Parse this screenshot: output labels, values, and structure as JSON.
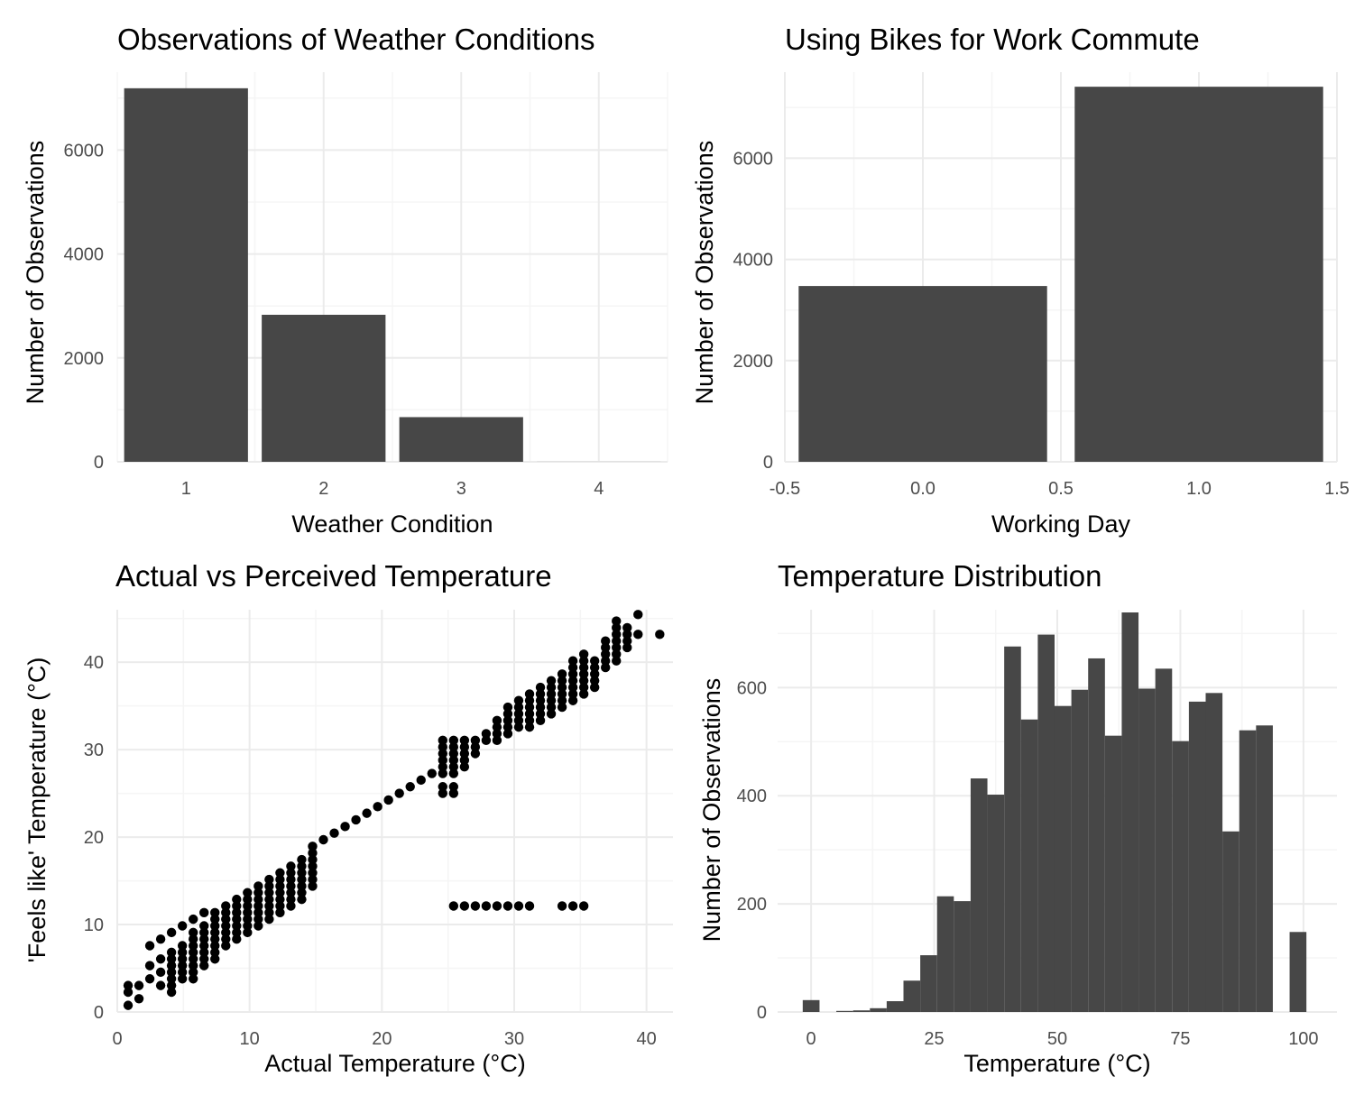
{
  "colors": {
    "bar": "#474747",
    "point": "#000000",
    "grid_major": "#ebebeb",
    "grid_minor": "#f5f5f5",
    "tick_text": "#4d4d4d"
  },
  "chart_data": [
    {
      "type": "bar",
      "title": "Observations of Weather Conditions",
      "xlabel": "Weather Condition",
      "ylabel": "Number of Observations",
      "categories": [
        1,
        2,
        3,
        4
      ],
      "values": [
        7190,
        2830,
        860,
        1
      ],
      "xlim": [
        0.5,
        4.5
      ],
      "ylim": [
        0,
        7500
      ],
      "x_ticks": [
        "1",
        "2",
        "3",
        "4"
      ],
      "y_ticks": [
        "0",
        "2000",
        "4000",
        "6000"
      ],
      "grid": true
    },
    {
      "type": "bar",
      "title": "Using Bikes for Work Commute",
      "xlabel": "Working Day",
      "ylabel": "Number of Observations",
      "categories": [
        0,
        1
      ],
      "values": [
        3474,
        7412
      ],
      "xlim": [
        -0.5,
        1.5
      ],
      "ylim": [
        0,
        7700
      ],
      "x_ticks": [
        "-0.5",
        "0.0",
        "0.5",
        "1.0",
        "1.5"
      ],
      "y_ticks": [
        "0",
        "2000",
        "4000",
        "6000"
      ],
      "grid": true
    },
    {
      "type": "scatter",
      "title": "Actual vs Perceived Temperature",
      "xlabel": "Actual Temperature (°C)",
      "ylabel": "'Feels like' Temperature (°C)",
      "xlim": [
        0,
        42
      ],
      "ylim": [
        0,
        46
      ],
      "x_ticks": [
        "0",
        "10",
        "20",
        "30",
        "40"
      ],
      "y_ticks": [
        "0",
        "10",
        "20",
        "30",
        "40"
      ],
      "grid": true,
      "points": [
        [
          0.82,
          0.76
        ],
        [
          0.82,
          2.27
        ],
        [
          0.82,
          3.03
        ],
        [
          1.64,
          1.52
        ],
        [
          1.64,
          3.03
        ],
        [
          2.46,
          3.79
        ],
        [
          2.46,
          5.3
        ],
        [
          2.46,
          7.58
        ],
        [
          3.28,
          3.03
        ],
        [
          3.28,
          4.55
        ],
        [
          3.28,
          6.06
        ],
        [
          3.28,
          8.33
        ],
        [
          4.1,
          2.27
        ],
        [
          4.1,
          3.03
        ],
        [
          4.1,
          3.79
        ],
        [
          4.1,
          4.55
        ],
        [
          4.1,
          5.3
        ],
        [
          4.1,
          6.06
        ],
        [
          4.1,
          6.82
        ],
        [
          4.1,
          9.09
        ],
        [
          4.92,
          3.79
        ],
        [
          4.92,
          4.55
        ],
        [
          4.92,
          5.3
        ],
        [
          4.92,
          6.06
        ],
        [
          4.92,
          6.82
        ],
        [
          4.92,
          7.58
        ],
        [
          4.92,
          9.85
        ],
        [
          5.74,
          3.79
        ],
        [
          5.74,
          4.55
        ],
        [
          5.74,
          5.3
        ],
        [
          5.74,
          6.06
        ],
        [
          5.74,
          6.82
        ],
        [
          5.74,
          7.58
        ],
        [
          5.74,
          8.33
        ],
        [
          5.74,
          9.09
        ],
        [
          5.74,
          10.61
        ],
        [
          6.56,
          5.3
        ],
        [
          6.56,
          6.06
        ],
        [
          6.56,
          6.82
        ],
        [
          6.56,
          7.58
        ],
        [
          6.56,
          8.33
        ],
        [
          6.56,
          9.09
        ],
        [
          6.56,
          9.85
        ],
        [
          6.56,
          11.36
        ],
        [
          7.38,
          6.06
        ],
        [
          7.38,
          6.82
        ],
        [
          7.38,
          7.58
        ],
        [
          7.38,
          8.33
        ],
        [
          7.38,
          9.09
        ],
        [
          7.38,
          9.85
        ],
        [
          7.38,
          10.61
        ],
        [
          7.38,
          11.36
        ],
        [
          8.2,
          7.58
        ],
        [
          8.2,
          8.33
        ],
        [
          8.2,
          9.09
        ],
        [
          8.2,
          9.85
        ],
        [
          8.2,
          10.61
        ],
        [
          8.2,
          11.36
        ],
        [
          8.2,
          12.12
        ],
        [
          9.02,
          8.33
        ],
        [
          9.02,
          9.09
        ],
        [
          9.02,
          9.85
        ],
        [
          9.02,
          10.61
        ],
        [
          9.02,
          11.36
        ],
        [
          9.02,
          12.12
        ],
        [
          9.02,
          12.88
        ],
        [
          9.84,
          9.09
        ],
        [
          9.84,
          9.85
        ],
        [
          9.84,
          10.61
        ],
        [
          9.84,
          11.36
        ],
        [
          9.84,
          12.12
        ],
        [
          9.84,
          12.88
        ],
        [
          9.84,
          13.64
        ],
        [
          10.66,
          9.85
        ],
        [
          10.66,
          10.61
        ],
        [
          10.66,
          11.36
        ],
        [
          10.66,
          12.12
        ],
        [
          10.66,
          12.88
        ],
        [
          10.66,
          13.64
        ],
        [
          10.66,
          14.39
        ],
        [
          11.48,
          10.61
        ],
        [
          11.48,
          11.36
        ],
        [
          11.48,
          12.12
        ],
        [
          11.48,
          12.88
        ],
        [
          11.48,
          13.64
        ],
        [
          11.48,
          14.39
        ],
        [
          11.48,
          15.15
        ],
        [
          12.3,
          11.36
        ],
        [
          12.3,
          12.12
        ],
        [
          12.3,
          12.88
        ],
        [
          12.3,
          13.64
        ],
        [
          12.3,
          14.39
        ],
        [
          12.3,
          15.15
        ],
        [
          12.3,
          15.91
        ],
        [
          13.12,
          12.12
        ],
        [
          13.12,
          12.88
        ],
        [
          13.12,
          13.64
        ],
        [
          13.12,
          14.39
        ],
        [
          13.12,
          15.15
        ],
        [
          13.12,
          15.91
        ],
        [
          13.12,
          16.67
        ],
        [
          13.94,
          12.88
        ],
        [
          13.94,
          13.64
        ],
        [
          13.94,
          14.39
        ],
        [
          13.94,
          15.15
        ],
        [
          13.94,
          15.91
        ],
        [
          13.94,
          16.67
        ],
        [
          13.94,
          17.42
        ],
        [
          14.76,
          14.39
        ],
        [
          14.76,
          15.15
        ],
        [
          14.76,
          15.91
        ],
        [
          14.76,
          16.67
        ],
        [
          14.76,
          17.42
        ],
        [
          14.76,
          18.18
        ],
        [
          14.76,
          18.94
        ],
        [
          15.58,
          19.7
        ],
        [
          16.4,
          20.45
        ],
        [
          17.22,
          21.21
        ],
        [
          18.04,
          21.97
        ],
        [
          18.86,
          22.73
        ],
        [
          19.68,
          23.48
        ],
        [
          20.5,
          24.24
        ],
        [
          21.32,
          25.0
        ],
        [
          22.14,
          25.76
        ],
        [
          22.96,
          26.52
        ],
        [
          23.78,
          27.27
        ],
        [
          24.6,
          25.0
        ],
        [
          24.6,
          25.76
        ],
        [
          24.6,
          27.27
        ],
        [
          24.6,
          28.03
        ],
        [
          24.6,
          28.79
        ],
        [
          24.6,
          29.55
        ],
        [
          24.6,
          30.3
        ],
        [
          24.6,
          31.06
        ],
        [
          25.42,
          12.12
        ],
        [
          25.42,
          25.0
        ],
        [
          25.42,
          25.76
        ],
        [
          25.42,
          27.27
        ],
        [
          25.42,
          28.03
        ],
        [
          25.42,
          28.79
        ],
        [
          25.42,
          29.55
        ],
        [
          25.42,
          30.3
        ],
        [
          25.42,
          31.06
        ],
        [
          26.24,
          12.12
        ],
        [
          26.24,
          28.03
        ],
        [
          26.24,
          28.79
        ],
        [
          26.24,
          29.55
        ],
        [
          26.24,
          30.3
        ],
        [
          26.24,
          31.06
        ],
        [
          27.06,
          12.12
        ],
        [
          27.06,
          29.55
        ],
        [
          27.06,
          30.3
        ],
        [
          27.06,
          31.06
        ],
        [
          27.88,
          12.12
        ],
        [
          27.88,
          31.06
        ],
        [
          27.88,
          31.82
        ],
        [
          28.7,
          12.12
        ],
        [
          28.7,
          31.06
        ],
        [
          28.7,
          31.82
        ],
        [
          28.7,
          32.58
        ],
        [
          28.7,
          33.33
        ],
        [
          29.52,
          12.12
        ],
        [
          29.52,
          31.82
        ],
        [
          29.52,
          32.58
        ],
        [
          29.52,
          33.33
        ],
        [
          29.52,
          34.09
        ],
        [
          29.52,
          34.85
        ],
        [
          30.34,
          12.12
        ],
        [
          30.34,
          32.58
        ],
        [
          30.34,
          33.33
        ],
        [
          30.34,
          34.09
        ],
        [
          30.34,
          34.85
        ],
        [
          30.34,
          35.61
        ],
        [
          31.16,
          12.12
        ],
        [
          31.16,
          32.58
        ],
        [
          31.16,
          33.33
        ],
        [
          31.16,
          34.09
        ],
        [
          31.16,
          34.85
        ],
        [
          31.16,
          35.61
        ],
        [
          31.16,
          36.36
        ],
        [
          31.98,
          33.33
        ],
        [
          31.98,
          34.09
        ],
        [
          31.98,
          34.85
        ],
        [
          31.98,
          35.61
        ],
        [
          31.98,
          36.36
        ],
        [
          31.98,
          37.12
        ],
        [
          32.8,
          34.09
        ],
        [
          32.8,
          34.85
        ],
        [
          32.8,
          35.61
        ],
        [
          32.8,
          36.36
        ],
        [
          32.8,
          37.12
        ],
        [
          32.8,
          37.88
        ],
        [
          33.62,
          12.12
        ],
        [
          33.62,
          34.85
        ],
        [
          33.62,
          35.61
        ],
        [
          33.62,
          36.36
        ],
        [
          33.62,
          37.12
        ],
        [
          33.62,
          37.88
        ],
        [
          33.62,
          38.64
        ],
        [
          34.44,
          12.12
        ],
        [
          34.44,
          35.61
        ],
        [
          34.44,
          36.36
        ],
        [
          34.44,
          37.12
        ],
        [
          34.44,
          37.88
        ],
        [
          34.44,
          38.64
        ],
        [
          34.44,
          39.39
        ],
        [
          34.44,
          40.15
        ],
        [
          35.26,
          12.12
        ],
        [
          35.26,
          36.36
        ],
        [
          35.26,
          37.12
        ],
        [
          35.26,
          37.88
        ],
        [
          35.26,
          38.64
        ],
        [
          35.26,
          39.39
        ],
        [
          35.26,
          40.15
        ],
        [
          35.26,
          40.91
        ],
        [
          36.08,
          37.12
        ],
        [
          36.08,
          37.88
        ],
        [
          36.08,
          38.64
        ],
        [
          36.08,
          39.39
        ],
        [
          36.08,
          40.15
        ],
        [
          36.9,
          39.39
        ],
        [
          36.9,
          40.15
        ],
        [
          36.9,
          40.91
        ],
        [
          36.9,
          41.67
        ],
        [
          36.9,
          42.42
        ],
        [
          37.72,
          40.15
        ],
        [
          37.72,
          40.91
        ],
        [
          37.72,
          41.67
        ],
        [
          37.72,
          42.42
        ],
        [
          37.72,
          43.18
        ],
        [
          37.72,
          43.94
        ],
        [
          37.72,
          44.7
        ],
        [
          38.54,
          41.67
        ],
        [
          38.54,
          42.42
        ],
        [
          38.54,
          43.18
        ],
        [
          38.54,
          43.94
        ],
        [
          39.36,
          43.18
        ],
        [
          39.36,
          45.45
        ],
        [
          41.0,
          43.18
        ]
      ]
    },
    {
      "type": "bar",
      "subtype": "histogram",
      "title": "Temperature Distribution",
      "xlabel": "Temperature (°C)",
      "ylabel": "Number of Observations",
      "bin_width": 3.41,
      "bin_start": -1.7,
      "values": [
        22,
        0,
        2,
        3,
        7,
        20,
        58,
        105,
        214,
        205,
        432,
        402,
        676,
        541,
        698,
        566,
        596,
        654,
        511,
        739,
        598,
        635,
        501,
        574,
        590,
        334,
        521,
        530,
        0,
        148
      ],
      "xlim": [
        -6.8,
        106.8
      ],
      "ylim": [
        0,
        744
      ],
      "x_ticks": [
        "0",
        "25",
        "50",
        "75",
        "100"
      ],
      "y_ticks": [
        "0",
        "200",
        "400",
        "600"
      ],
      "grid": true
    }
  ]
}
